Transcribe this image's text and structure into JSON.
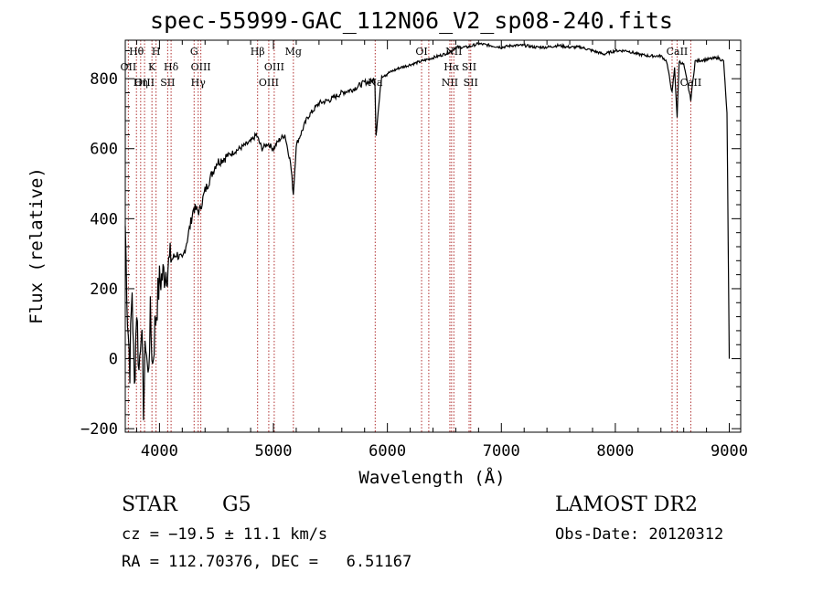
{
  "chart_data": {
    "type": "line",
    "title": "spec-55999-GAC_112N06_V2_sp08-240.fits",
    "xlabel": "Wavelength (Å)",
    "ylabel": "Flux (relative)",
    "xlim": [
      3700,
      9100
    ],
    "ylim": [
      -210,
      910
    ],
    "x_ticks": [
      4000,
      5000,
      6000,
      7000,
      8000,
      9000
    ],
    "y_ticks": [
      -200,
      0,
      200,
      400,
      600,
      800
    ],
    "series": [
      {
        "x": [
          3700,
          3720,
          3740,
          3760,
          3780,
          3800,
          3820,
          3840,
          3860,
          3880,
          3900,
          3920,
          3940,
          3960,
          3980,
          4000,
          4050,
          4100,
          4150,
          4200,
          4250,
          4300,
          4350,
          4400,
          4450,
          4500,
          4600,
          4700,
          4800,
          4850,
          4900,
          4950,
          5000,
          5050,
          5100,
          5150,
          5175,
          5200,
          5300,
          5400,
          5500,
          5600,
          5700,
          5800,
          5850,
          5890,
          5900,
          5950,
          6000,
          6100,
          6200,
          6300,
          6400,
          6500,
          6563,
          6600,
          6700,
          6800,
          6900,
          7000,
          7100,
          7200,
          7300,
          7400,
          7500,
          7600,
          7700,
          7800,
          7900,
          8000,
          8100,
          8200,
          8300,
          8400,
          8450,
          8498,
          8520,
          8542,
          8560,
          8600,
          8662,
          8700,
          8800,
          8900,
          8950,
          8980,
          8990,
          9000
        ],
        "values": [
          380,
          120,
          -20,
          200,
          -90,
          150,
          -40,
          110,
          -130,
          60,
          -60,
          120,
          -20,
          90,
          160,
          220,
          250,
          280,
          300,
          280,
          350,
          430,
          420,
          480,
          520,
          560,
          580,
          600,
          620,
          640,
          600,
          615,
          600,
          625,
          640,
          560,
          470,
          610,
          690,
          730,
          740,
          760,
          770,
          790,
          790,
          800,
          640,
          810,
          815,
          830,
          840,
          850,
          860,
          870,
          880,
          890,
          890,
          900,
          895,
          890,
          895,
          895,
          890,
          890,
          895,
          890,
          890,
          880,
          870,
          880,
          880,
          870,
          865,
          865,
          850,
          760,
          830,
          690,
          850,
          840,
          740,
          850,
          855,
          860,
          850,
          700,
          330,
          0
        ]
      }
    ],
    "emission_lines": [
      {
        "label": "Hθ",
        "x": 3798,
        "row": 1
      },
      {
        "label": "OII",
        "x": 3727,
        "row": 2
      },
      {
        "label": "OIII",
        "x": 3869,
        "row": 3
      },
      {
        "label": "Hη",
        "x": 3835,
        "row": 3
      },
      {
        "label": "H",
        "x": 3970,
        "row": 1
      },
      {
        "label": "K",
        "x": 3934,
        "row": 2
      },
      {
        "label": "Hδ",
        "x": 4102,
        "row": 2
      },
      {
        "label": "SII",
        "x": 4072,
        "row": 3
      },
      {
        "label": "G",
        "x": 4304,
        "row": 1
      },
      {
        "label": "OIII",
        "x": 4363,
        "row": 2
      },
      {
        "label": "Hγ",
        "x": 4340,
        "row": 3
      },
      {
        "label": "Hβ",
        "x": 4861,
        "row": 1
      },
      {
        "label": "OIII",
        "x": 5007,
        "row": 2
      },
      {
        "label": "OIII",
        "x": 4959,
        "row": 3
      },
      {
        "label": "Mg",
        "x": 5175,
        "row": 1
      },
      {
        "label": "Na",
        "x": 5893,
        "row": 3
      },
      {
        "label": "OI",
        "x": 6300,
        "row": 1
      },
      {
        "label": "NII",
        "x": 6583,
        "row": 1
      },
      {
        "label": "Hα",
        "x": 6563,
        "row": 2
      },
      {
        "label": "SII",
        "x": 6717,
        "row": 2
      },
      {
        "label": "NII",
        "x": 6548,
        "row": 3
      },
      {
        "label": "SII",
        "x": 6731,
        "row": 3
      },
      {
        "label": "CaII",
        "x": 8542,
        "row": 1
      },
      {
        "label": "CaII",
        "x": 8662,
        "row": 3
      }
    ],
    "line_positions": [
      3727,
      3798,
      3835,
      3869,
      3934,
      3970,
      4072,
      4102,
      4304,
      4340,
      4363,
      4861,
      4959,
      5007,
      5175,
      5893,
      6300,
      6363,
      6548,
      6563,
      6583,
      6717,
      6731,
      8498,
      8542,
      8662
    ],
    "colors": {
      "spectrum": "#000000",
      "lines": "#b03030",
      "axes": "#000000"
    }
  },
  "info": {
    "class_label": "STAR",
    "subclass": "G5",
    "survey": "LAMOST DR2",
    "cz": "cz = −19.5 ± 11.1 km/s",
    "obs_date": "Obs-Date: 20120312",
    "radec": "RA = 112.70376, DEC =   6.51167"
  }
}
